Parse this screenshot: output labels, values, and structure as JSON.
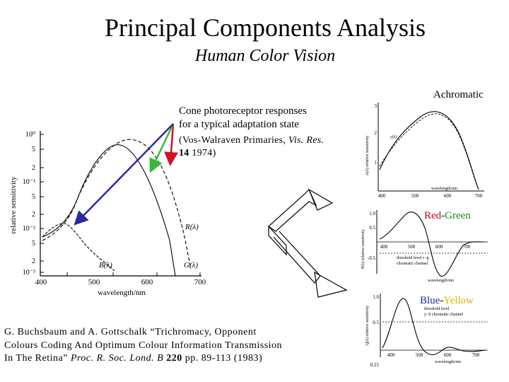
{
  "slide": {
    "title": "Principal Components Analysis",
    "subtitle": "Human Color Vision"
  },
  "cone_caption": {
    "line1": "Cone photoreceptor responses",
    "line2": "for a typical adaptation state",
    "source_open": "(Vos-Walraven Primaries, ",
    "source_journal": "Vis. Res.",
    "source_volume": "14",
    "source_year": " 1974)"
  },
  "cone_plot": {
    "ylabel": "relative sensitivity",
    "xlabel": "wavelength/nm",
    "yticks": [
      "10⁰",
      "5",
      "2",
      "10⁻¹",
      "5",
      "2",
      "10⁻²",
      "5",
      "2",
      "10⁻³"
    ],
    "xticks": [
      "400",
      "500",
      "600",
      "700"
    ],
    "curve_labels": [
      "R(λ)",
      "G(λ)",
      "B(λ)"
    ],
    "arrow_colors": {
      "red": "#d0102a",
      "green": "#3ab83a",
      "blue": "#2a2aa0"
    }
  },
  "channels": {
    "achromatic": {
      "label": "Achromatic",
      "ylabel": "A(λ) relative sensitivity",
      "xlabel": "wavelength/nm",
      "xticks": [
        "400",
        "500",
        "600",
        "700"
      ],
      "yticks": [
        "3",
        "2",
        "1"
      ],
      "annot": "y(λ)"
    },
    "red_green": {
      "label_a": "Red",
      "sep": "-",
      "label_b": "Green",
      "ylabel": "P(λ) relative sensitivity",
      "xlabel": "wavelength/nm",
      "xticks": [
        "400",
        "500",
        "600",
        "700"
      ],
      "yticks": [
        "1.0",
        "0.5",
        "-0.5"
      ],
      "annot1": "threshold level r−g",
      "annot2": "chromatic channel"
    },
    "blue_yellow": {
      "label_a": "Blue",
      "sep": "-",
      "label_b": "Yellow",
      "ylabel": "Q(λ) relative sensitivity",
      "xlabel": "wavelength/nm",
      "xticks": [
        "400",
        "500",
        "600",
        "700"
      ],
      "yticks": [
        "1.0",
        "0.5",
        "0.25"
      ],
      "annot1": "threshold level",
      "annot2": "y−b chromatic channel"
    }
  },
  "reference": {
    "line1": "G. Buchsbaum and A. Gottschalk “Trichromacy, Opponent",
    "line2": "Colours Coding And Optimum Colour Information Transmission",
    "line3_pre": "In The Retina” ",
    "line3_journal": "Proc. R. Soc. Lond. B",
    "line3_volume": " 220",
    "line3_post": " pp. 89-113 (1983)"
  }
}
